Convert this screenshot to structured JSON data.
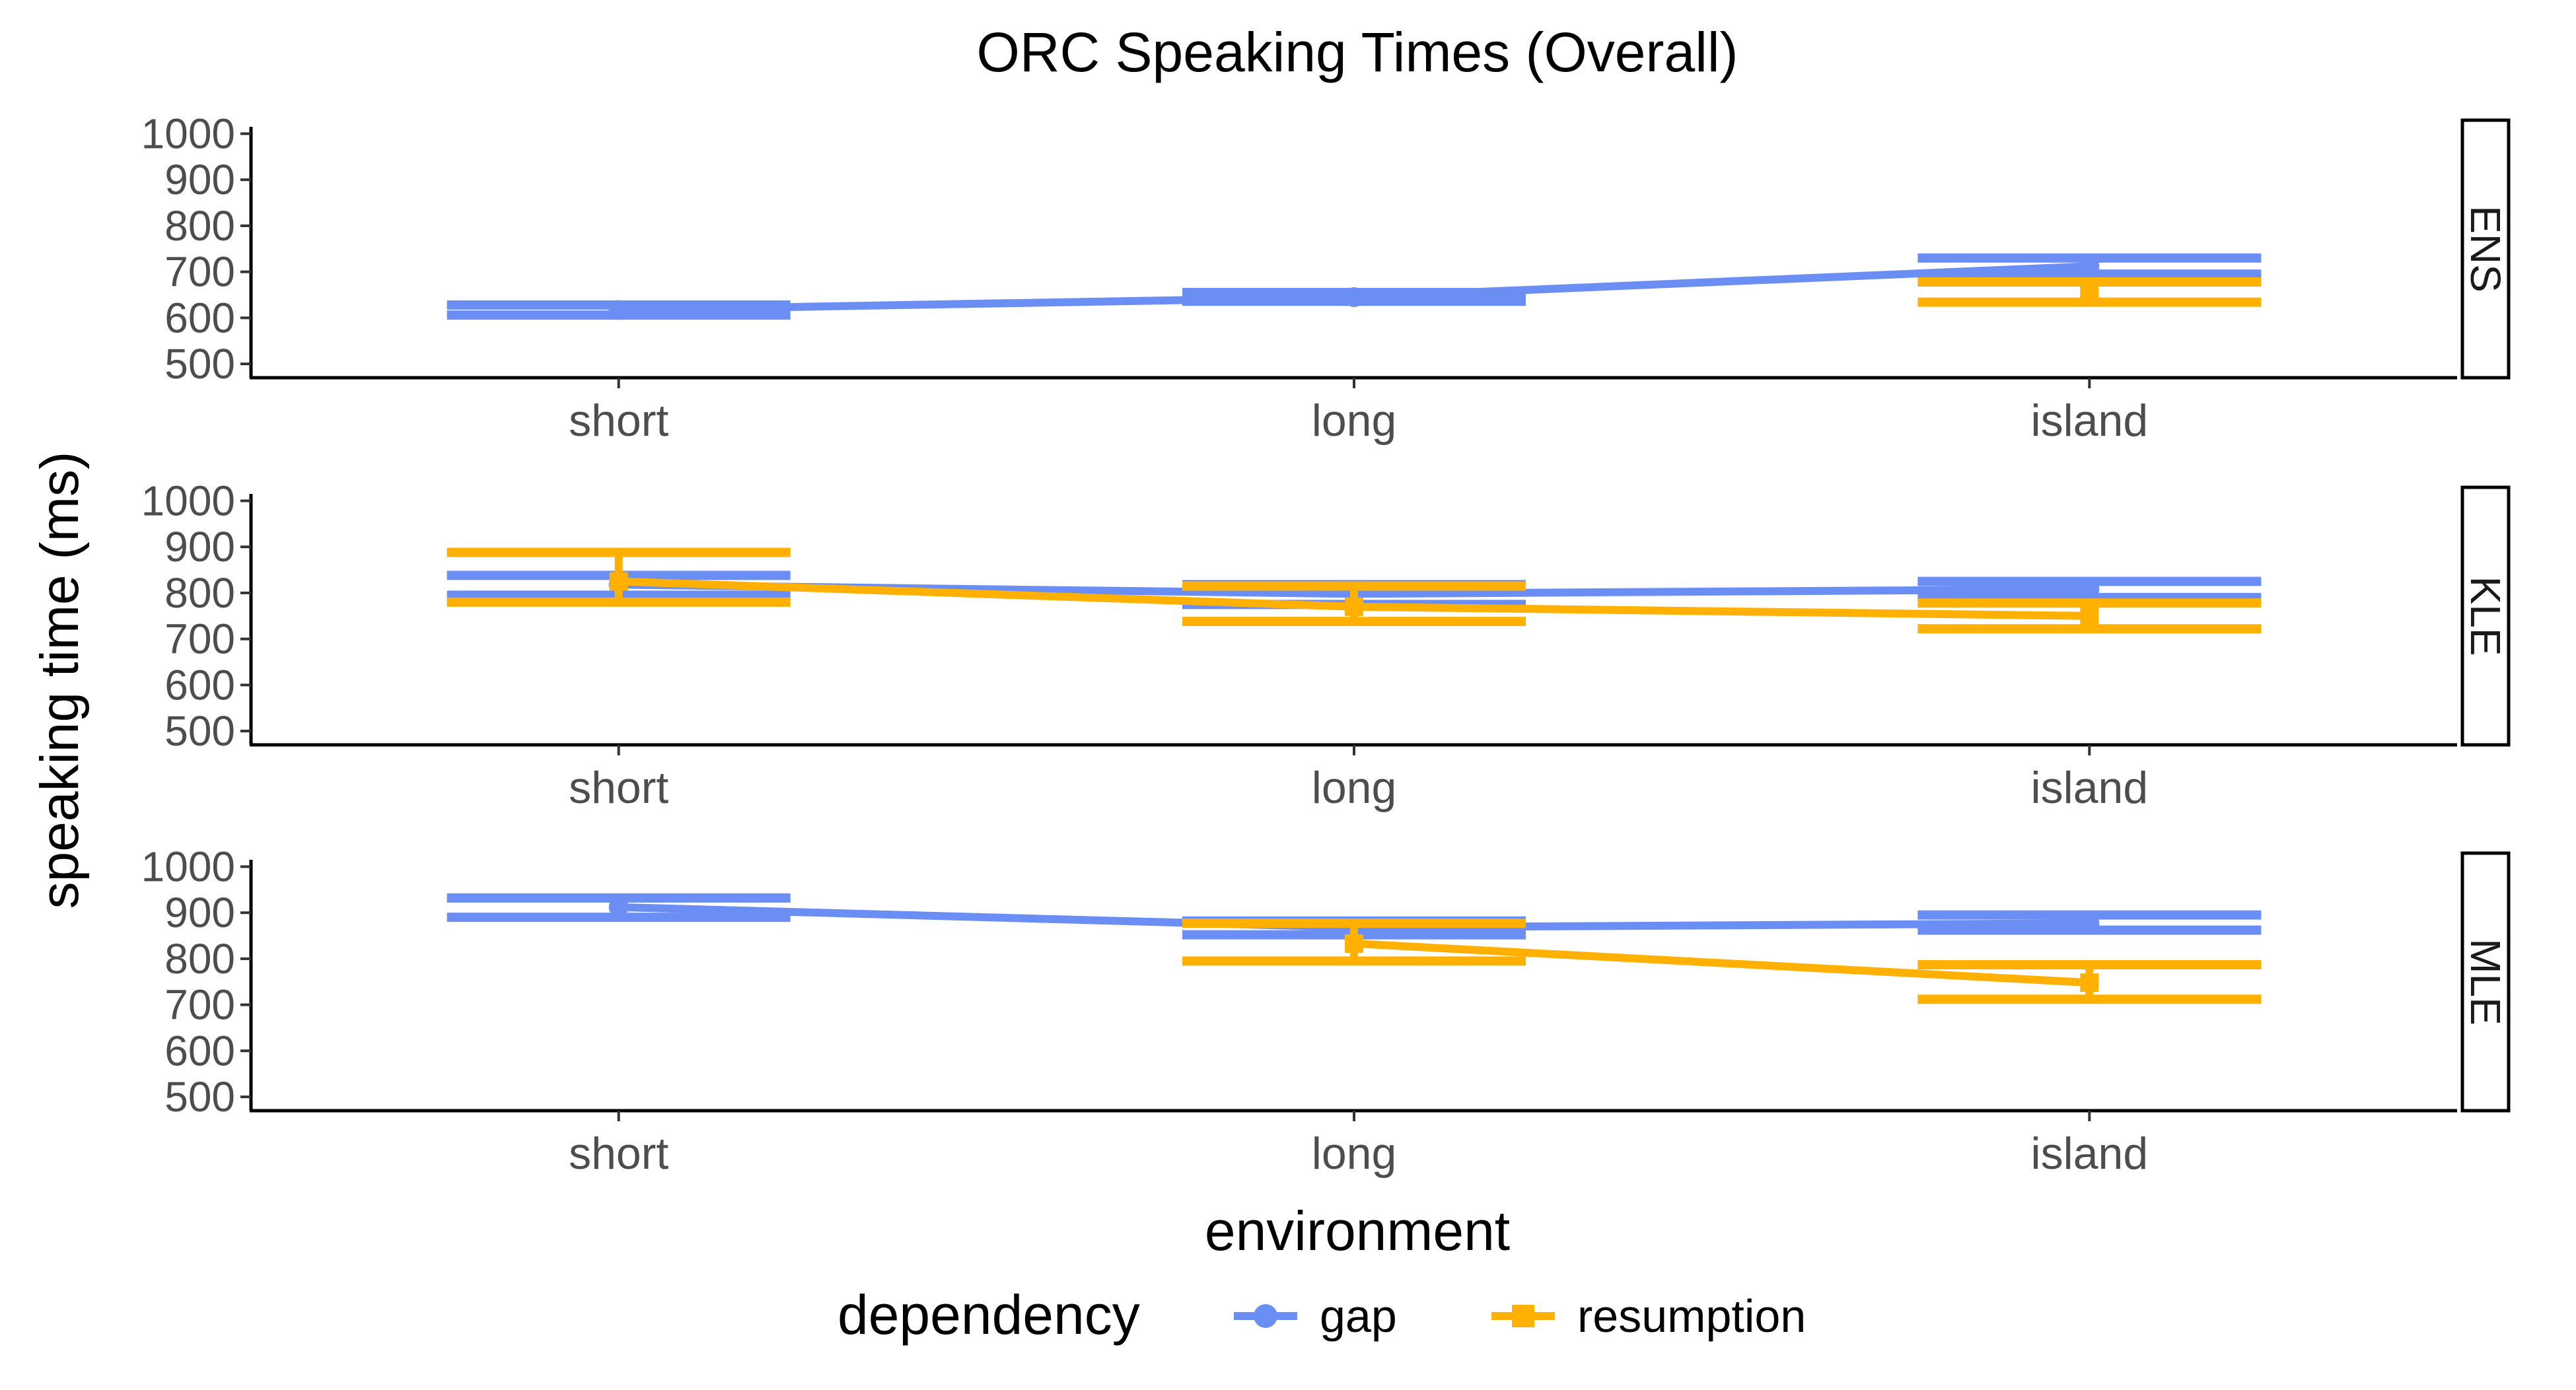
{
  "chart_data": {
    "type": "line",
    "title": "ORC Speaking Times (Overall)",
    "xlabel": "environment",
    "ylabel": "speaking time (ms)",
    "categories": [
      "short",
      "long",
      "island"
    ],
    "y_ticks": [
      500,
      600,
      700,
      800,
      900,
      1000
    ],
    "ylim": [
      470,
      1015
    ],
    "grid": false,
    "legend": {
      "title": "dependency",
      "position": "bottom",
      "entries": [
        {
          "name": "gap",
          "color": "#6b8ef5",
          "shape": "circle"
        },
        {
          "name": "resumption",
          "color": "#ffb000",
          "shape": "square"
        }
      ]
    },
    "panels": [
      {
        "label": "ENS",
        "series": [
          {
            "name": "gap",
            "color": "#6b8ef5",
            "values": [
              617,
              645,
              712
            ],
            "lower": [
              606,
              636,
              695
            ],
            "upper": [
              628,
              655,
              730
            ]
          },
          {
            "name": "resumption",
            "color": "#ffb000",
            "values": [
              null,
              null,
              655
            ],
            "lower": [
              null,
              null,
              634
            ],
            "upper": [
              null,
              null,
              678
            ]
          }
        ]
      },
      {
        "label": "KLE",
        "series": [
          {
            "name": "gap",
            "color": "#6b8ef5",
            "values": [
              818,
              798,
              808
            ],
            "lower": [
              795,
              775,
              790
            ],
            "upper": [
              838,
              818,
              825
            ]
          },
          {
            "name": "resumption",
            "color": "#ffb000",
            "values": [
              825,
              770,
              750
            ],
            "lower": [
              780,
              738,
              722
            ],
            "upper": [
              888,
              815,
              778
            ]
          }
        ]
      },
      {
        "label": "MLE",
        "series": [
          {
            "name": "gap",
            "color": "#6b8ef5",
            "values": [
              912,
              868,
              877
            ],
            "lower": [
              890,
              852,
              862
            ],
            "upper": [
              932,
              882,
              895
            ]
          },
          {
            "name": "resumption",
            "color": "#ffb000",
            "values": [
              null,
              833,
              748
            ],
            "lower": [
              null,
              795,
              712
            ],
            "upper": [
              null,
              877,
              787
            ]
          }
        ]
      }
    ]
  }
}
